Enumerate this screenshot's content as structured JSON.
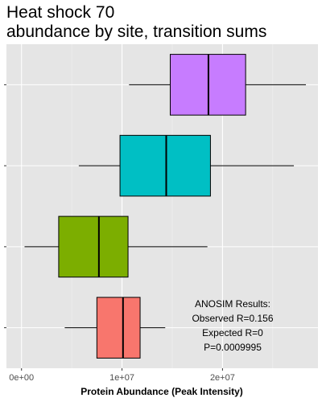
{
  "chart_data": {
    "type": "boxplot",
    "orientation": "horizontal",
    "title_lines": [
      "Heat shock 70",
      "abundance by site, transition sums"
    ],
    "xlabel": "Protein Abundance (Peak Intensity)",
    "ylabel": "",
    "xlim": [
      -1500000,
      29500000
    ],
    "x_ticks": [
      {
        "value": 0,
        "label": "0e+00"
      },
      {
        "value": 10000000,
        "label": "1e+07"
      },
      {
        "value": 20000000,
        "label": "2e+07"
      }
    ],
    "grid": true,
    "background": "#e5e5e5",
    "boxes": [
      {
        "color": "#f8766d",
        "min": 4300000,
        "q1": 7500000,
        "median": 10100000,
        "q3": 11800000,
        "max": 14300000
      },
      {
        "color": "#7cae00",
        "min": 300000,
        "q1": 3700000,
        "median": 7700000,
        "q3": 10600000,
        "max": 18500000
      },
      {
        "color": "#00bfc4",
        "min": 5700000,
        "q1": 9800000,
        "median": 14400000,
        "q3": 18800000,
        "max": 27100000
      },
      {
        "color": "#c77cff",
        "min": 10700000,
        "q1": 14800000,
        "median": 18600000,
        "q3": 22300000,
        "max": 28300000
      }
    ],
    "annotation": [
      "ANOSIM Results:",
      "Observed R=0.156",
      "Expected R=0",
      "P=0.0009995"
    ]
  }
}
